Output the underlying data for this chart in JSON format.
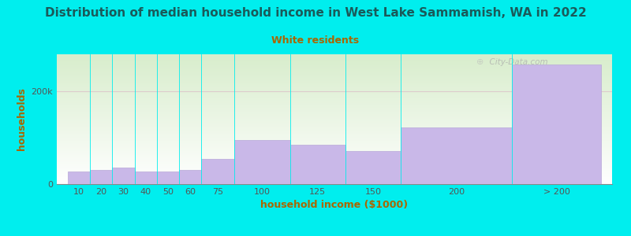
{
  "title": "Distribution of median household income in West Lake Sammamish, WA in 2022",
  "subtitle": "White residents",
  "xlabel": "household income ($1000)",
  "ylabel": "households",
  "background_outer": "#00EEEE",
  "bar_color": "#c9b8e8",
  "bar_edge_color": "#b8a8d8",
  "title_color": "#1a5a5a",
  "subtitle_color": "#aa6600",
  "axis_label_color": "#aa6600",
  "tick_label_color": "#555555",
  "watermark": "City-Data.com",
  "categories": [
    "10",
    "20",
    "30",
    "40",
    "50",
    "60",
    "75",
    "100",
    "125",
    "150",
    "200",
    "> 200"
  ],
  "left_edges": [
    0,
    10,
    20,
    30,
    40,
    50,
    60,
    75,
    100,
    125,
    150,
    200
  ],
  "right_edges": [
    10,
    20,
    30,
    40,
    50,
    60,
    75,
    100,
    125,
    150,
    200,
    240
  ],
  "values": [
    28000,
    30000,
    35000,
    27000,
    28000,
    30000,
    55000,
    95000,
    85000,
    72000,
    122000,
    258000
  ],
  "ylim": [
    0,
    280000
  ],
  "yticks": [
    0,
    200000
  ],
  "ytick_labels": [
    "0",
    "200k"
  ],
  "hline_y": 200000,
  "hline_color": "#ddcccc",
  "plot_bg_top": "#ffffff",
  "plot_bg_bottom": "#d8edcc"
}
